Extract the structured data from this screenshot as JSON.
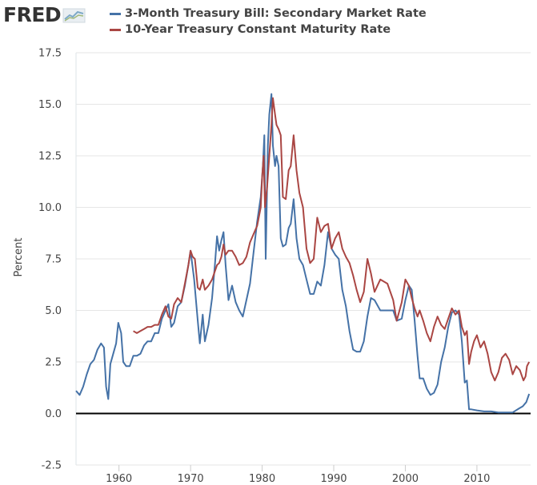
{
  "logo": {
    "text": "FRED",
    "icon": "fred-chart-icon"
  },
  "chart_data": {
    "type": "line",
    "title": "",
    "xlabel": "",
    "ylabel": "Percent",
    "xlim": [
      1954,
      2017.5
    ],
    "ylim": [
      -2.5,
      17.5
    ],
    "x_ticks": [
      "1960",
      "1970",
      "1980",
      "1990",
      "2000",
      "2010"
    ],
    "y_ticks": [
      "-2.5",
      "0.0",
      "2.5",
      "5.0",
      "7.5",
      "10.0",
      "12.5",
      "15.0",
      "17.5"
    ],
    "grid": "horizontal",
    "legend_position": "top",
    "zero_line": true,
    "series": [
      {
        "name": "3-Month Treasury Bill: Secondary Market Rate",
        "color": "#4572a7",
        "x": [
          1954.0,
          1954.5,
          1955.0,
          1955.5,
          1956.0,
          1956.5,
          1957.0,
          1957.5,
          1957.9,
          1958.2,
          1958.5,
          1958.8,
          1959.2,
          1959.6,
          1959.9,
          1960.3,
          1960.6,
          1961.0,
          1961.5,
          1962.0,
          1962.5,
          1963.0,
          1963.5,
          1964.0,
          1964.5,
          1965.0,
          1965.5,
          1966.0,
          1966.5,
          1966.9,
          1967.3,
          1967.7,
          1968.2,
          1968.7,
          1969.2,
          1969.7,
          1970.0,
          1970.5,
          1971.0,
          1971.3,
          1971.7,
          1972.0,
          1972.5,
          1973.0,
          1973.4,
          1973.7,
          1974.0,
          1974.3,
          1974.6,
          1974.9,
          1975.3,
          1975.8,
          1976.3,
          1976.8,
          1977.3,
          1977.8,
          1978.3,
          1978.8,
          1979.3,
          1979.8,
          1980.1,
          1980.3,
          1980.5,
          1980.8,
          1981.0,
          1981.3,
          1981.5,
          1981.8,
          1982.0,
          1982.3,
          1982.6,
          1982.9,
          1983.3,
          1983.7,
          1984.0,
          1984.4,
          1984.8,
          1985.2,
          1985.7,
          1986.2,
          1986.7,
          1987.2,
          1987.7,
          1988.2,
          1988.7,
          1989.2,
          1989.7,
          1990.2,
          1990.7,
          1991.2,
          1991.7,
          1992.2,
          1992.7,
          1993.2,
          1993.7,
          1994.2,
          1994.7,
          1995.2,
          1995.7,
          1996.5,
          1997.5,
          1998.3,
          1998.8,
          1999.5,
          2000.0,
          2000.5,
          2000.9,
          2001.3,
          2001.7,
          2002.0,
          2002.5,
          2003.0,
          2003.5,
          2004.0,
          2004.5,
          2005.0,
          2005.5,
          2006.0,
          2006.5,
          2007.0,
          2007.5,
          2007.9,
          2008.3,
          2008.6,
          2008.9,
          2009.2,
          2010.0,
          2011.0,
          2012.0,
          2013.0,
          2014.0,
          2015.0,
          2015.9,
          2016.4,
          2016.9,
          2017.3
        ],
        "y": [
          1.1,
          0.9,
          1.3,
          1.9,
          2.4,
          2.6,
          3.1,
          3.4,
          3.2,
          1.3,
          0.7,
          2.4,
          2.9,
          3.4,
          4.4,
          3.9,
          2.5,
          2.3,
          2.3,
          2.8,
          2.8,
          2.9,
          3.3,
          3.5,
          3.5,
          3.9,
          3.9,
          4.6,
          5.0,
          5.3,
          4.2,
          4.4,
          5.2,
          5.4,
          6.2,
          7.2,
          7.9,
          6.5,
          4.5,
          3.4,
          4.8,
          3.5,
          4.3,
          5.6,
          7.2,
          8.6,
          7.9,
          8.4,
          8.8,
          7.2,
          5.5,
          6.2,
          5.4,
          5.0,
          4.7,
          5.5,
          6.3,
          7.8,
          9.3,
          10.5,
          12.0,
          13.5,
          7.5,
          13.0,
          14.5,
          15.5,
          13.0,
          12.0,
          12.5,
          12.0,
          8.5,
          8.1,
          8.2,
          9.0,
          9.2,
          10.4,
          8.5,
          7.5,
          7.2,
          6.5,
          5.8,
          5.8,
          6.4,
          6.2,
          7.2,
          8.8,
          8.0,
          7.7,
          7.5,
          6.0,
          5.2,
          4.0,
          3.1,
          3.0,
          3.0,
          3.5,
          4.7,
          5.6,
          5.5,
          5.0,
          5.0,
          5.0,
          4.5,
          4.6,
          5.5,
          6.2,
          6.0,
          4.5,
          2.8,
          1.7,
          1.7,
          1.2,
          0.9,
          1.0,
          1.4,
          2.5,
          3.2,
          4.2,
          4.9,
          5.0,
          4.8,
          3.5,
          1.5,
          1.6,
          0.2,
          0.2,
          0.15,
          0.1,
          0.1,
          0.05,
          0.05,
          0.05,
          0.25,
          0.35,
          0.55,
          0.95
        ]
      },
      {
        "name": "10-Year Treasury Constant Maturity Rate",
        "color": "#aa4643",
        "x": [
          1962.0,
          1962.5,
          1963.0,
          1963.5,
          1964.0,
          1964.5,
          1965.0,
          1965.5,
          1966.0,
          1966.5,
          1966.9,
          1967.3,
          1967.7,
          1968.2,
          1968.7,
          1969.2,
          1969.7,
          1970.0,
          1970.3,
          1970.6,
          1971.0,
          1971.3,
          1971.7,
          1972.0,
          1972.5,
          1973.0,
          1973.4,
          1973.7,
          1974.0,
          1974.3,
          1974.6,
          1974.9,
          1975.3,
          1975.8,
          1976.3,
          1976.8,
          1977.3,
          1977.8,
          1978.3,
          1978.8,
          1979.3,
          1979.8,
          1980.0,
          1980.2,
          1980.4,
          1980.7,
          1981.0,
          1981.3,
          1981.5,
          1981.8,
          1982.0,
          1982.3,
          1982.6,
          1982.9,
          1983.3,
          1983.7,
          1984.0,
          1984.4,
          1984.8,
          1985.2,
          1985.7,
          1986.2,
          1986.7,
          1987.2,
          1987.7,
          1988.2,
          1988.7,
          1989.2,
          1989.7,
          1990.2,
          1990.7,
          1991.2,
          1991.7,
          1992.2,
          1992.7,
          1993.2,
          1993.7,
          1994.2,
          1994.7,
          1995.2,
          1995.7,
          1996.5,
          1997.5,
          1998.3,
          1998.8,
          1999.5,
          2000.0,
          2000.5,
          2000.9,
          2001.3,
          2001.7,
          2002.0,
          2002.5,
          2003.0,
          2003.5,
          2004.0,
          2004.5,
          2005.0,
          2005.5,
          2006.0,
          2006.5,
          2007.0,
          2007.5,
          2007.9,
          2008.3,
          2008.6,
          2008.9,
          2009.2,
          2009.6,
          2010.0,
          2010.5,
          2011.0,
          2011.5,
          2012.0,
          2012.5,
          2013.0,
          2013.5,
          2014.0,
          2014.5,
          2015.0,
          2015.5,
          2016.0,
          2016.5,
          2016.8,
          2017.0,
          2017.3
        ],
        "y": [
          4.0,
          3.9,
          4.0,
          4.1,
          4.2,
          4.2,
          4.3,
          4.3,
          4.8,
          5.2,
          4.7,
          4.6,
          5.3,
          5.6,
          5.4,
          6.3,
          7.2,
          7.9,
          7.6,
          7.5,
          6.1,
          6.0,
          6.5,
          6.0,
          6.2,
          6.5,
          6.9,
          7.2,
          7.3,
          7.6,
          8.2,
          7.7,
          7.9,
          7.9,
          7.6,
          7.2,
          7.3,
          7.6,
          8.3,
          8.7,
          9.1,
          10.0,
          11.5,
          12.5,
          10.0,
          11.0,
          12.5,
          14.0,
          15.3,
          14.5,
          14.0,
          13.8,
          13.5,
          10.5,
          10.4,
          11.8,
          12.0,
          13.5,
          11.8,
          10.7,
          10.0,
          8.0,
          7.3,
          7.5,
          9.5,
          8.8,
          9.1,
          9.2,
          8.0,
          8.5,
          8.8,
          8.0,
          7.6,
          7.3,
          6.7,
          6.0,
          5.4,
          5.9,
          7.5,
          6.8,
          5.9,
          6.5,
          6.3,
          5.5,
          4.5,
          5.4,
          6.5,
          6.2,
          5.6,
          5.1,
          4.7,
          5.0,
          4.5,
          3.9,
          3.5,
          4.2,
          4.7,
          4.3,
          4.1,
          4.6,
          5.1,
          4.8,
          5.0,
          4.2,
          3.8,
          4.0,
          2.4,
          3.0,
          3.5,
          3.8,
          3.2,
          3.5,
          2.9,
          2.0,
          1.6,
          2.0,
          2.7,
          2.9,
          2.6,
          1.9,
          2.3,
          2.1,
          1.6,
          1.8,
          2.3,
          2.5
        ]
      }
    ]
  }
}
